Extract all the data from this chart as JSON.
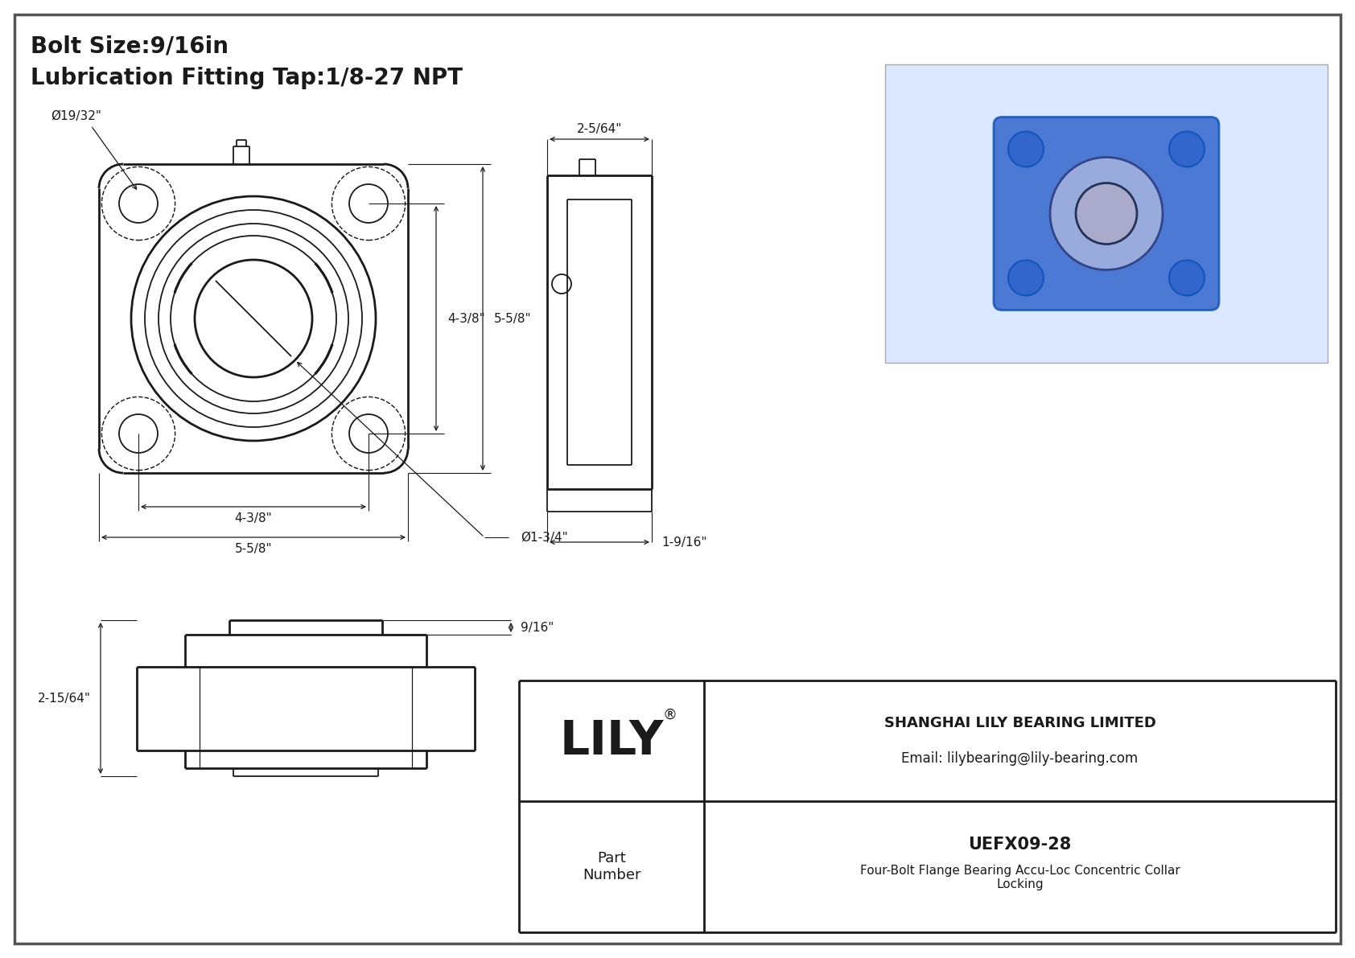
{
  "bg_color": "#ffffff",
  "lc": "#1a1a1a",
  "title_line1": "Bolt Size:9/16in",
  "title_line2": "Lubrication Fitting Tap:1/8-27 NPT",
  "company_name": "SHANGHAI LILY BEARING LIMITED",
  "company_email": "Email: lilybearing@lily-bearing.com",
  "brand": "LILY",
  "brand_reg": "®",
  "part_label": "Part\nNumber",
  "part_number": "UEFX09-28",
  "part_desc1": "Four-Bolt Flange Bearing Accu-Loc Concentric Collar",
  "part_desc2": "Locking",
  "dim_bolt_hole": "Ø19/32\"",
  "dim_bore": "Ø1-3/4\"",
  "dim_inner_w": "4-3/8\"",
  "dim_outer_w": "5-5/8\"",
  "dim_inner_h": "4-3/8\"",
  "dim_outer_h": "5-5/8\"",
  "dim_side_w": "2-5/64\"",
  "dim_side_h": "1-9/16\"",
  "dim_bot_h": "2-15/64\"",
  "dim_bot_w": "9/16\""
}
